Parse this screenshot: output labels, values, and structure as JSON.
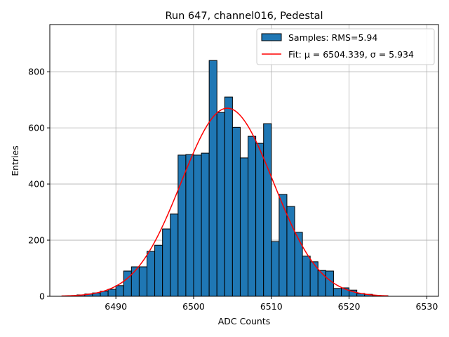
{
  "chart_data": {
    "type": "bar",
    "title": "Run 647, channel016, Pedestal",
    "xlabel": "ADC Counts",
    "ylabel": "Entries",
    "xlim": [
      6481.5,
      6531.5
    ],
    "ylim": [
      0,
      968
    ],
    "xticks": [
      6490,
      6500,
      6510,
      6520,
      6530
    ],
    "yticks": [
      0,
      200,
      400,
      600,
      800
    ],
    "grid": true,
    "legend_position": "top-right",
    "bin_width": 1,
    "histogram": {
      "name": "Samples: RMS=5.94",
      "color": "#1f77b4",
      "bin_starts": [
        6484,
        6485,
        6486,
        6487,
        6488,
        6489,
        6490,
        6491,
        6492,
        6493,
        6494,
        6495,
        6496,
        6497,
        6498,
        6499,
        6500,
        6501,
        6502,
        6503,
        6504,
        6505,
        6506,
        6507,
        6508,
        6509,
        6510,
        6511,
        6512,
        6513,
        6514,
        6515,
        6516,
        6517,
        6518,
        6519,
        6520,
        6521,
        6522,
        6523,
        6524
      ],
      "counts": [
        2,
        5,
        8,
        12,
        18,
        25,
        38,
        90,
        105,
        105,
        160,
        182,
        240,
        293,
        503,
        505,
        503,
        510,
        840,
        655,
        710,
        602,
        493,
        570,
        545,
        615,
        195,
        363,
        320,
        228,
        143,
        123,
        92,
        90,
        28,
        30,
        22,
        10,
        7,
        3,
        2
      ]
    },
    "fit": {
      "name": "Fit: μ = 6504.339, σ = 5.934",
      "color": "#ff0000",
      "mu": 6504.339,
      "sigma": 5.934,
      "amplitude": 670,
      "x_range": [
        6483,
        6525
      ]
    }
  }
}
